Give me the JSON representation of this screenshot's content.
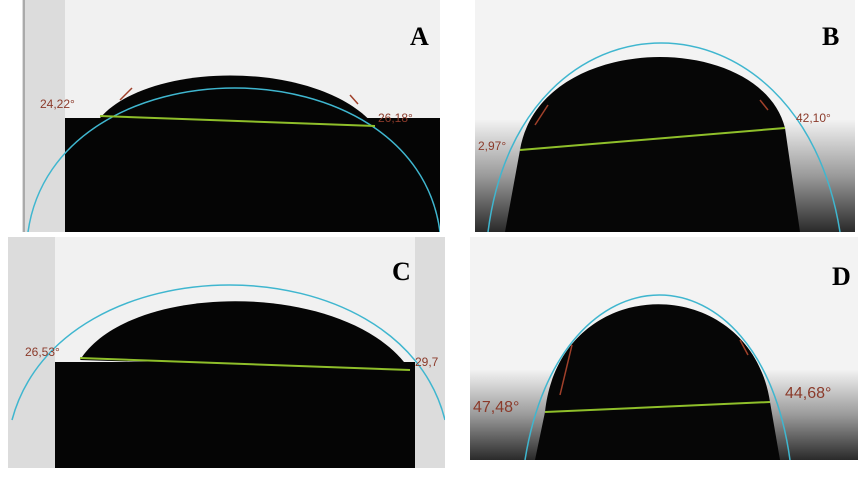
{
  "panels": [
    {
      "label": "A",
      "left_angle": "24,22°",
      "right_angle": "26,18°"
    },
    {
      "label": "B",
      "left_angle": "2,97°",
      "right_angle": "42,10°"
    },
    {
      "label": "C",
      "left_angle": "26,53°",
      "right_angle": "29,7"
    },
    {
      "label": "D",
      "left_angle": "47,48°",
      "right_angle": "44,68°"
    }
  ]
}
